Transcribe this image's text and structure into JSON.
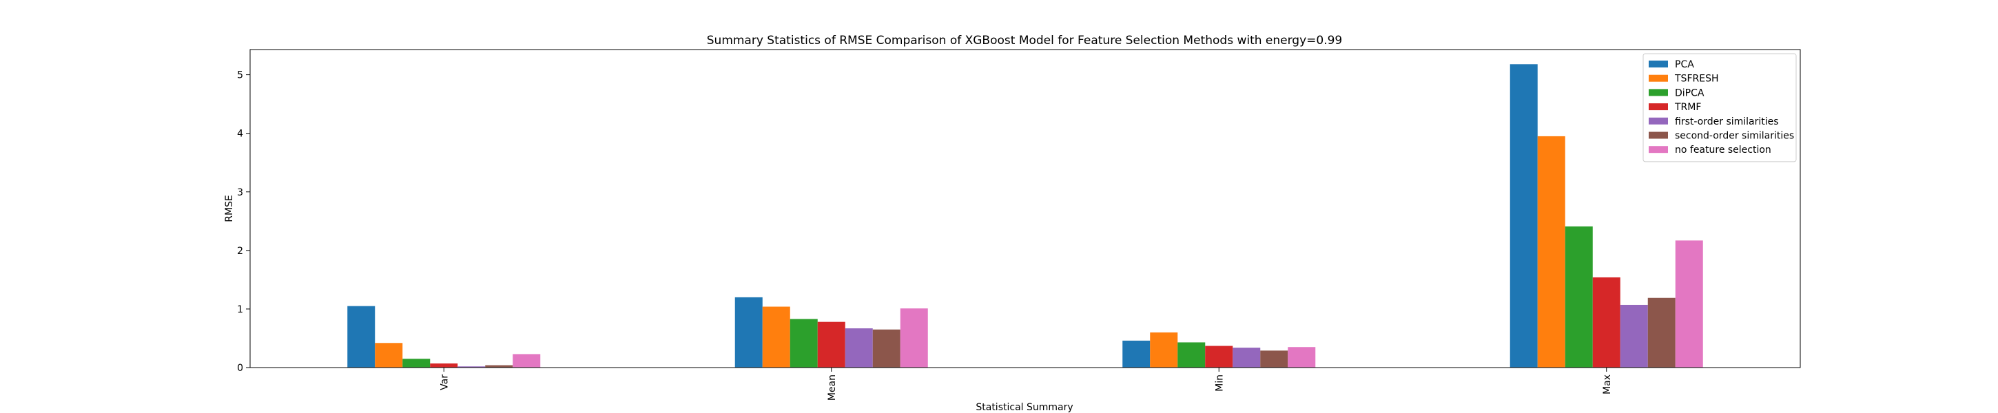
{
  "chart_data": {
    "type": "bar",
    "title": "Summary Statistics of RMSE Comparison of XGBoost Model for Feature Selection Methods with energy=0.99",
    "xlabel": "Statistical Summary",
    "ylabel": "RMSE",
    "categories": [
      "Var",
      "Mean",
      "Min",
      "Max"
    ],
    "ylim": [
      0,
      5.43
    ],
    "yticks": [
      0,
      1,
      2,
      3,
      4,
      5
    ],
    "grid": false,
    "legend_position": "top-right",
    "series": [
      {
        "name": "PCA",
        "color": "#1f77b4",
        "values": [
          1.05,
          1.2,
          0.46,
          5.18
        ]
      },
      {
        "name": "TSFRESH",
        "color": "#ff7f0e",
        "values": [
          0.42,
          1.04,
          0.6,
          3.95
        ]
      },
      {
        "name": "DiPCA",
        "color": "#2ca02c",
        "values": [
          0.15,
          0.83,
          0.43,
          2.41
        ]
      },
      {
        "name": "TRMF",
        "color": "#d62728",
        "values": [
          0.07,
          0.78,
          0.37,
          1.54
        ]
      },
      {
        "name": "first-order similarities",
        "color": "#9467bd",
        "values": [
          0.02,
          0.67,
          0.34,
          1.07
        ]
      },
      {
        "name": "second-order similarities",
        "color": "#8c564b",
        "values": [
          0.04,
          0.65,
          0.29,
          1.19
        ]
      },
      {
        "name": "no feature selection",
        "color": "#e377c2",
        "values": [
          0.23,
          1.01,
          0.35,
          2.17
        ]
      }
    ]
  }
}
